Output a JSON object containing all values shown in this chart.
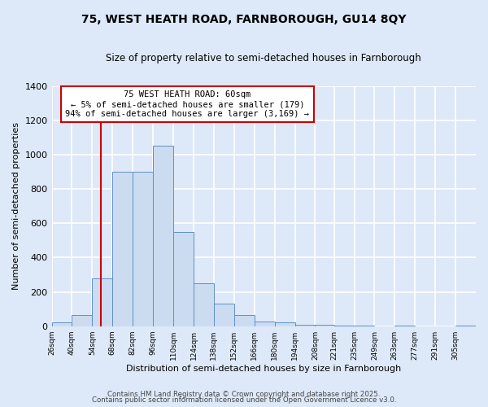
{
  "title1": "75, WEST HEATH ROAD, FARNBOROUGH, GU14 8QY",
  "title2": "Size of property relative to semi-detached houses in Farnborough",
  "xlabel": "Distribution of semi-detached houses by size in Farnborough",
  "ylabel": "Number of semi-detached properties",
  "bar_edges": [
    26,
    40,
    54,
    68,
    82,
    96,
    110,
    124,
    138,
    152,
    166,
    180,
    194,
    208,
    221,
    235,
    249,
    263,
    277,
    291,
    305
  ],
  "bar_heights": [
    20,
    65,
    280,
    900,
    900,
    1050,
    550,
    250,
    130,
    65,
    25,
    20,
    10,
    10,
    5,
    5,
    0,
    5,
    0,
    0,
    5
  ],
  "bar_color": "#ccdcf0",
  "bar_edge_color": "#6090c8",
  "vline_x": 60,
  "vline_color": "#cc0000",
  "ylim": [
    0,
    1400
  ],
  "yticks": [
    0,
    200,
    400,
    600,
    800,
    1000,
    1200,
    1400
  ],
  "annotation_title": "75 WEST HEATH ROAD: 60sqm",
  "annotation_line1": "← 5% of semi-detached houses are smaller (179)",
  "annotation_line2": "94% of semi-detached houses are larger (3,169) →",
  "annotation_box_color": "#ffffff",
  "annotation_box_edge": "#cc0000",
  "background_color": "#dde8f8",
  "grid_color": "#ffffff",
  "footer1": "Contains HM Land Registry data © Crown copyright and database right 2025.",
  "footer2": "Contains public sector information licensed under the Open Government Licence v3.0."
}
